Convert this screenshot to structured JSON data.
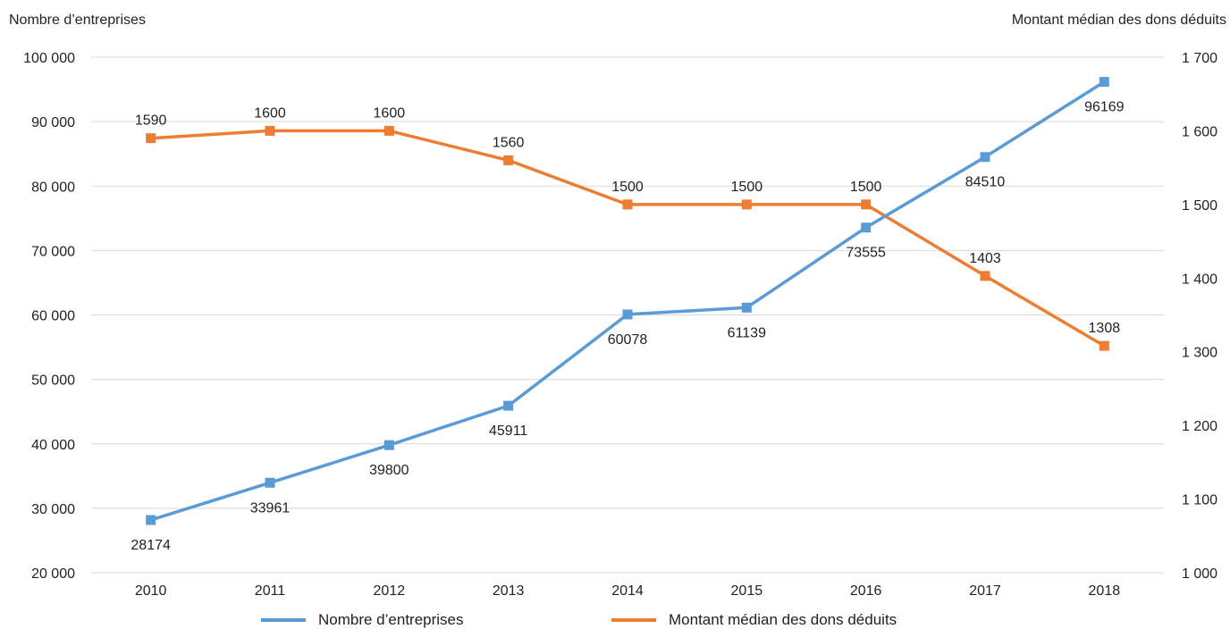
{
  "chart_data": {
    "type": "line",
    "categories": [
      "2010",
      "2011",
      "2012",
      "2013",
      "2014",
      "2015",
      "2016",
      "2017",
      "2018"
    ],
    "left_axis": {
      "title": "Nombre d’entreprises",
      "ylim": [
        20000,
        100000
      ],
      "ticks": [
        20000,
        30000,
        40000,
        50000,
        60000,
        70000,
        80000,
        90000,
        100000
      ],
      "tick_labels": [
        "20 000",
        "30 000",
        "40 000",
        "50 000",
        "60 000",
        "70 000",
        "80 000",
        "90 000",
        "100 000"
      ]
    },
    "right_axis": {
      "title": "Montant médian des dons déduits",
      "ylim": [
        1000,
        1700
      ],
      "ticks": [
        1000,
        1100,
        1200,
        1300,
        1400,
        1500,
        1600,
        1700
      ],
      "tick_labels": [
        "1 000",
        "1 100",
        "1 200",
        "1 300",
        "1 400",
        "1 500",
        "1 600",
        "1 700"
      ]
    },
    "series": [
      {
        "name": "Nombre d’entreprises",
        "axis": "left",
        "color": "#5B9BD5",
        "values": [
          28174,
          33961,
          39800,
          45911,
          60078,
          61139,
          73555,
          84510,
          96169
        ],
        "label_position": "below"
      },
      {
        "name": "Montant médian des dons déduits",
        "axis": "right",
        "color": "#ED7D31",
        "values": [
          1590,
          1600,
          1600,
          1560,
          1500,
          1500,
          1500,
          1403,
          1308
        ],
        "label_position": "above"
      }
    ],
    "grid": "horizontal",
    "legend_position": "bottom"
  }
}
